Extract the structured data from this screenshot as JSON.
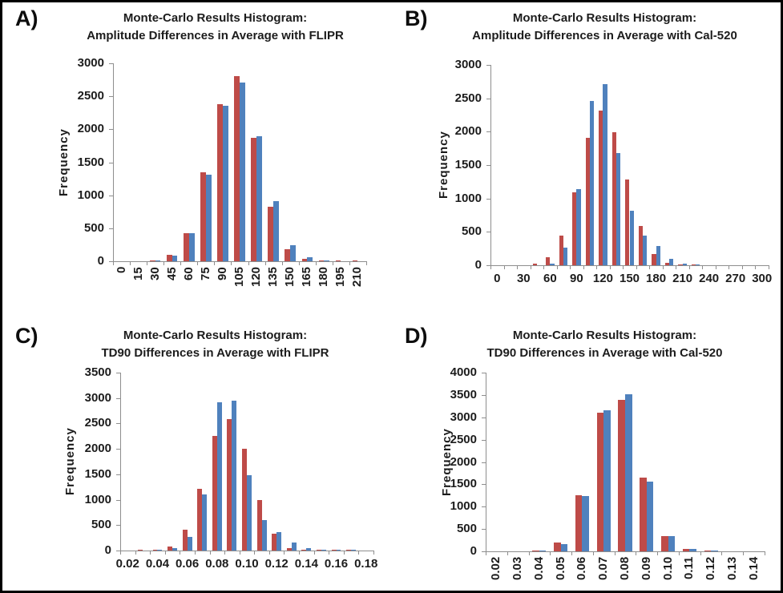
{
  "figure": {
    "background": "#ffffff",
    "border_color": "#000000"
  },
  "colors": {
    "series_red": "#BE4B48",
    "series_blue": "#4F81BD",
    "axis": "#8e8e8e",
    "text": "#1c1c1c"
  },
  "chart_data": [
    {
      "type": "bar",
      "panel_label": "A)",
      "title_line1": "Monte-Carlo Results Histogram:",
      "title_line2": "Amplitude Differences in Average with FLIPR",
      "ylabel": "Frequency",
      "ylim": [
        0,
        3000
      ],
      "ytick_step": 500,
      "ytick_labels": [
        "0",
        "500",
        "1000",
        "1500",
        "2000",
        "2500",
        "3000"
      ],
      "categories": [
        "0",
        "15",
        "30",
        "45",
        "60",
        "75",
        "90",
        "105",
        "120",
        "135",
        "150",
        "165",
        "180",
        "195",
        "210"
      ],
      "x_label_every": 1,
      "x_label_rotated": true,
      "grid": false,
      "legend": "none",
      "series": [
        {
          "name": "red",
          "color": "#BE4B48",
          "values": [
            0,
            0,
            15,
            95,
            430,
            1345,
            2380,
            2810,
            1870,
            820,
            185,
            40,
            15,
            5,
            15
          ]
        },
        {
          "name": "blue",
          "color": "#4F81BD",
          "values": [
            0,
            0,
            10,
            85,
            420,
            1310,
            2355,
            2710,
            1890,
            905,
            240,
            60,
            10,
            0,
            0
          ]
        }
      ]
    },
    {
      "type": "bar",
      "panel_label": "B)",
      "title_line1": "Monte-Carlo Results Histogram:",
      "title_line2": "Amplitude Differences in Average with Cal-520",
      "ylabel": "Frequency",
      "ylim": [
        0,
        3000
      ],
      "ytick_step": 500,
      "ytick_labels": [
        "0",
        "500",
        "1000",
        "1500",
        "2000",
        "2500",
        "3000"
      ],
      "categories": [
        "0",
        "15",
        "30",
        "45",
        "60",
        "75",
        "90",
        "105",
        "120",
        "135",
        "150",
        "165",
        "180",
        "195",
        "210",
        "225",
        "240",
        "255",
        "270",
        "285",
        "300"
      ],
      "x_label_every": 2,
      "x_label_rotated": false,
      "grid": false,
      "legend": "none",
      "series": [
        {
          "name": "red",
          "color": "#BE4B48",
          "values": [
            0,
            0,
            0,
            25,
            120,
            440,
            1090,
            1910,
            2320,
            1990,
            1290,
            590,
            170,
            40,
            5,
            10,
            0,
            0,
            0,
            0,
            0
          ]
        },
        {
          "name": "blue",
          "color": "#4F81BD",
          "values": [
            0,
            0,
            0,
            0,
            25,
            270,
            1140,
            2460,
            2710,
            1680,
            820,
            440,
            290,
            100,
            30,
            5,
            0,
            0,
            0,
            0,
            0
          ]
        }
      ]
    },
    {
      "type": "bar",
      "panel_label": "C)",
      "title_line1": "Monte-Carlo Results Histogram:",
      "title_line2": "TD90 Differences in Average with FLIPR",
      "ylabel": "Frequency",
      "ylim": [
        0,
        3500
      ],
      "ytick_step": 500,
      "ytick_labels": [
        "0",
        "500",
        "1000",
        "1500",
        "2000",
        "2500",
        "3000",
        "3500"
      ],
      "categories": [
        "0.02",
        "0.03",
        "0.04",
        "0.05",
        "0.06",
        "0.07",
        "0.08",
        "0.09",
        "0.10",
        "0.11",
        "0.12",
        "0.13",
        "0.14",
        "0.15",
        "0.16",
        "0.17",
        "0.18"
      ],
      "x_label_every": 2,
      "x_label_rotated": false,
      "grid": false,
      "legend": "none",
      "series": [
        {
          "name": "red",
          "color": "#BE4B48",
          "values": [
            0,
            5,
            15,
            80,
            405,
            1210,
            2260,
            2580,
            2000,
            995,
            330,
            45,
            15,
            10,
            5,
            10,
            0
          ]
        },
        {
          "name": "blue",
          "color": "#4F81BD",
          "values": [
            0,
            0,
            10,
            40,
            275,
            1100,
            2910,
            2950,
            1475,
            605,
            365,
            160,
            40,
            10,
            15,
            5,
            0
          ]
        }
      ]
    },
    {
      "type": "bar",
      "panel_label": "D)",
      "title_line1": "Monte-Carlo Results Histogram:",
      "title_line2": "TD90 Differences in Average with Cal-520",
      "ylabel": "Frequency",
      "ylim": [
        0,
        4000
      ],
      "ytick_step": 500,
      "ytick_labels": [
        "0",
        "500",
        "1000",
        "1500",
        "2000",
        "2500",
        "3000",
        "3500",
        "4000"
      ],
      "categories": [
        "0.02",
        "0.03",
        "0.04",
        "0.05",
        "0.06",
        "0.07",
        "0.08",
        "0.09",
        "0.10",
        "0.11",
        "0.12",
        "0.13",
        "0.14"
      ],
      "x_label_every": 1,
      "x_label_rotated": true,
      "grid": false,
      "legend": "none",
      "series": [
        {
          "name": "red",
          "color": "#BE4B48",
          "values": [
            0,
            0,
            25,
            205,
            1255,
            3105,
            3390,
            1655,
            340,
            45,
            15,
            0,
            0
          ]
        },
        {
          "name": "blue",
          "color": "#4F81BD",
          "values": [
            0,
            0,
            20,
            165,
            1230,
            3165,
            3520,
            1555,
            340,
            45,
            10,
            0,
            0
          ]
        }
      ]
    }
  ]
}
